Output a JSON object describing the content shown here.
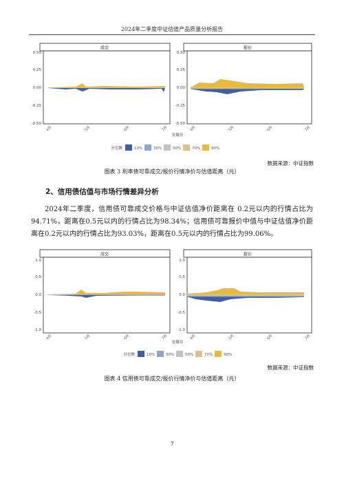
{
  "header": {
    "title": "2024年二季度中证估值产品质量分析报告"
  },
  "figure3": {
    "panels": [
      "成交",
      "报价"
    ],
    "y_ticks": [
      "0.50",
      "0.25",
      "0.00",
      "-0.25",
      "-0.50"
    ],
    "x_ticks": [
      "4月",
      "5月",
      "6月",
      "7月"
    ],
    "x_axis_label": "交易日",
    "legend_title": "分位数",
    "legend_items": [
      "10%",
      "30%",
      "50%",
      "70%",
      "90%"
    ],
    "source": "数据来源：中证指数",
    "caption": "图表 3 利率债可靠成交/报价行情净价与估值距离（元）"
  },
  "section": {
    "heading": "2、信用债估值与市场行情差异分析"
  },
  "paragraph": "2024年二季度，信用债可靠成交价格与中证估值净价距离在 0.2元以内的行情占比为94.71%，距离在0.5元以内的行情占比为98.34%；信用债可靠报价中值与中证估值净价距离在0.2元以内的行情占比为93.03%，距离在0.5元以内的行情占比为99.06%。",
  "figure4": {
    "panels": [
      "成交",
      "报价"
    ],
    "y_ticks": [
      "1.0",
      "0.5",
      "0.0",
      "-0.5",
      "-1.0"
    ],
    "x_ticks": [
      "4月",
      "5月",
      "6月",
      "7月"
    ],
    "x_axis_label": "交易日",
    "legend_title": "分位数",
    "legend_items": [
      "10%",
      "30%",
      "50%",
      "70%",
      "90%"
    ],
    "source": "数据来源：中证指数",
    "caption": "图表 4 信用债可靠成交/报价行情净价与估值距离（元）"
  },
  "colors": {
    "q10": "#3f5fa0",
    "q30": "#8fa6c8",
    "q50": "#c2c2c2",
    "q70": "#dcc08d",
    "q90": "#e8b93c"
  },
  "page_number": "7"
}
